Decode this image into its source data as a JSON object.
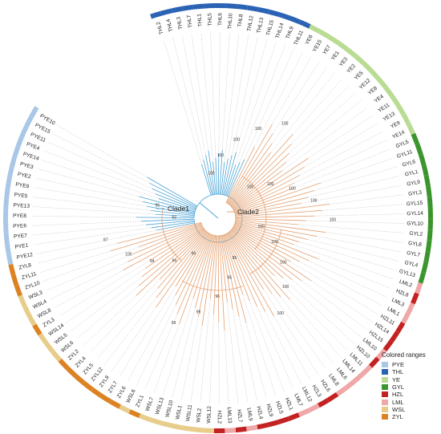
{
  "legend": {
    "title": "Colored ranges",
    "items": [
      {
        "label": "PYE",
        "color": "#a9c7e6"
      },
      {
        "label": "THL",
        "color": "#2a62b4"
      },
      {
        "label": "YE",
        "color": "#b9dc93"
      },
      {
        "label": "GYL",
        "color": "#3b952d"
      },
      {
        "label": "HZL",
        "color": "#c42222"
      },
      {
        "label": "LML",
        "color": "#efa7a8"
      },
      {
        "label": "WSL",
        "color": "#e8cc8a"
      },
      {
        "label": "ZYL",
        "color": "#dc8222"
      }
    ]
  },
  "clades": [
    {
      "label": "Clade1",
      "color": "#4aa3d6"
    },
    {
      "label": "Clade2",
      "color": "#e3a070"
    }
  ],
  "leaves": [
    {
      "group": "THL",
      "labels": [
        "THL2",
        "THL4",
        "THL3",
        "THL7",
        "THL1",
        "THL5",
        "THL6",
        "THL10",
        "THL8",
        "THL12",
        "THL13",
        "THL15",
        "THL14",
        "THL9",
        "THL11"
      ]
    },
    {
      "group": "YE",
      "labels": [
        "YE6",
        "YE15",
        "YE7",
        "YE1",
        "YE3",
        "YE2",
        "YE5",
        "YE12",
        "YE8",
        "YE4",
        "YE11",
        "YE13",
        "YE9",
        "YE14"
      ]
    },
    {
      "group": "GYL",
      "labels": [
        "GYL5",
        "GYL11",
        "GYL6",
        "GYL1",
        "GYL9",
        "GYL3",
        "GYL15",
        "GYL14",
        "GYL10",
        "GYL2",
        "GYL8",
        "GYL7",
        "GYL4",
        "GYL13"
      ]
    },
    {
      "group": "HZL",
      "labels": [
        "LML2",
        "HZL8",
        "LML3",
        "LML1",
        "HZL11",
        "HZL14",
        "HZL15",
        "LML10",
        "HZL10",
        "LML11",
        "LML14",
        "LML6",
        "LML8",
        "HZL6",
        "HZL3",
        "LML12",
        "LML7",
        "HZL1",
        "HZL5",
        "HZL9",
        "HZL4",
        "LML9",
        "HZL7",
        "LML13",
        "HZL2",
        "WSL12"
      ]
    },
    {
      "group": "WSL",
      "labels": [
        "WSL2",
        "WSL11",
        "WSL1",
        "WSL10",
        "WSL13",
        "WSL7",
        "ZYL1",
        "WSL6",
        "ZYL6",
        "ZYL7",
        "ZYL9",
        "ZYL12",
        "ZYL5",
        "ZYL4",
        "ZYL2",
        "WSL6",
        "WSL5",
        "WSL14",
        "ZYL3",
        "WSL8",
        "WSL4",
        "WSL3",
        "ZYL10",
        "ZYL11",
        "ZYL8"
      ]
    },
    {
      "group": "PYE",
      "labels": [
        "PYE12",
        "PYE1",
        "PYE7",
        "PYE6",
        "PYE8",
        "PYE13",
        "PYE5",
        "PYE9",
        "PYE2",
        "PYE3",
        "PYE14",
        "PYE4",
        "PYE11",
        "PYE15",
        "PYE10"
      ]
    }
  ],
  "bootstrap": [
    "100",
    "100",
    "100",
    "100",
    "100",
    "100",
    "100",
    "100",
    "100",
    "100",
    "100",
    "100",
    "100",
    "100",
    "100",
    "95",
    "95",
    "96",
    "99",
    "99",
    "99",
    "94",
    "94",
    "100",
    "87",
    "93",
    "95"
  ]
}
